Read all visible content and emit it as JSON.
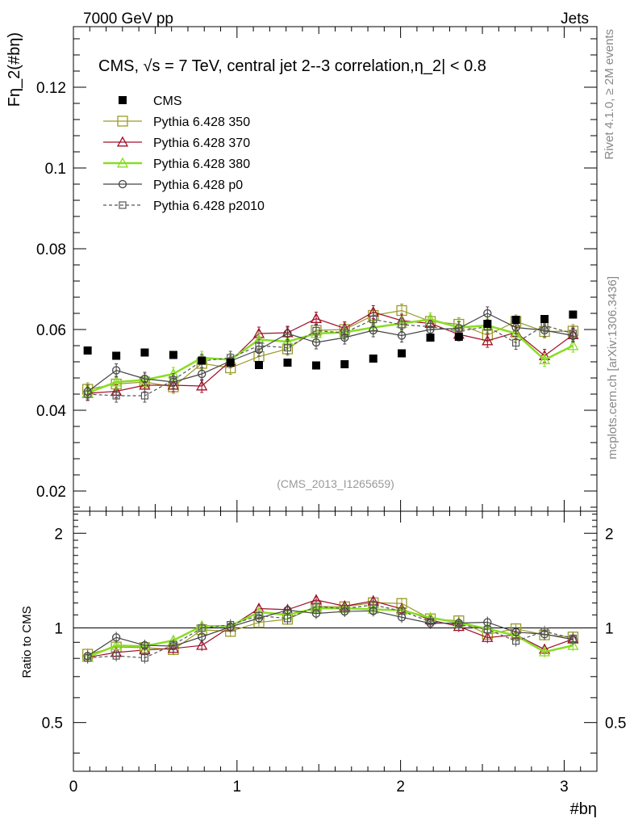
{
  "header": {
    "left": "7000 GeV pp",
    "right": "Jets"
  },
  "side_labels": {
    "rivet": "Rivet 4.1.0, ≥ 2M events",
    "mcplots": "mcplots.cern.ch [arXiv:1306.3436]"
  },
  "colors": {
    "cms": "#000000",
    "p350": "#9a9a2a",
    "p370": "#a0102a",
    "p380": "#88dd22",
    "p0": "#444444",
    "p2010": "#555555",
    "watermark": "#999999",
    "side": "#888888"
  },
  "chart_data": {
    "type": "line",
    "title": "CMS, √s = 7 TeV, central jet 2--3 correlation,η_2| < 0.8",
    "ylabel": "Fη_2(#bη)",
    "xlabel": "#bη",
    "ratio_ylabel": "Ratio to CMS",
    "watermark": "(CMS_2013_I1265659)",
    "xlim": [
      0,
      3.2
    ],
    "ylim": [
      0.015,
      0.135
    ],
    "ratio_ylim": [
      0.35,
      2.35
    ],
    "x_ticks": [
      "0",
      "1",
      "2",
      "3"
    ],
    "y_ticks": [
      "0.02",
      "0.04",
      "0.06",
      "0.08",
      "0.1",
      "0.12"
    ],
    "ratio_ticks": [
      "0.5",
      "1",
      "2"
    ],
    "x": [
      0.087,
      0.262,
      0.436,
      0.611,
      0.785,
      0.96,
      1.134,
      1.309,
      1.484,
      1.658,
      1.833,
      2.007,
      2.182,
      2.356,
      2.531,
      2.705,
      2.88,
      3.054
    ],
    "series": [
      {
        "name": "CMS",
        "key": "cms",
        "marker": "filled-square",
        "line": "none",
        "values": [
          0.0548,
          0.0535,
          0.0543,
          0.0537,
          0.0523,
          0.0518,
          0.0512,
          0.0518,
          0.0511,
          0.0514,
          0.0528,
          0.0541,
          0.058,
          0.0582,
          0.0614,
          0.0624,
          0.0626,
          0.0637
        ]
      },
      {
        "name": "Pythia 6.428 350",
        "key": "p350",
        "marker": "open-square",
        "line": "solid",
        "values": [
          0.0452,
          0.0465,
          0.047,
          0.0458,
          0.0516,
          0.0505,
          0.0533,
          0.0552,
          0.0598,
          0.06,
          0.0635,
          0.0647,
          0.062,
          0.0613,
          0.0586,
          0.062,
          0.0595,
          0.0596
        ]
      },
      {
        "name": "Pythia 6.428 370",
        "key": "p370",
        "marker": "open-triangle",
        "line": "solid",
        "values": [
          0.0442,
          0.0447,
          0.0462,
          0.0462,
          0.046,
          0.0522,
          0.059,
          0.0592,
          0.0627,
          0.0603,
          0.0643,
          0.0622,
          0.0615,
          0.0588,
          0.0572,
          0.0593,
          0.0535,
          0.0587
        ]
      },
      {
        "name": "Pythia 6.428 380",
        "key": "p380",
        "marker": "open-triangle",
        "line": "thick",
        "values": [
          0.0443,
          0.047,
          0.0475,
          0.049,
          0.053,
          0.0525,
          0.0575,
          0.057,
          0.059,
          0.0593,
          0.0605,
          0.0615,
          0.0625,
          0.0605,
          0.061,
          0.059,
          0.0525,
          0.056
        ]
      },
      {
        "name": "Pythia 6.428 p0",
        "key": "p0",
        "marker": "open-circle",
        "line": "solid",
        "values": [
          0.0446,
          0.0499,
          0.0478,
          0.047,
          0.049,
          0.0522,
          0.055,
          0.059,
          0.0568,
          0.058,
          0.0598,
          0.0585,
          0.06,
          0.0603,
          0.064,
          0.0605,
          0.0598,
          0.0585
        ]
      },
      {
        "name": "Pythia 6.428 p2010",
        "key": "p2010",
        "marker": "open-square-small",
        "line": "dashed",
        "values": [
          0.044,
          0.0436,
          0.0436,
          0.0475,
          0.0522,
          0.053,
          0.056,
          0.0555,
          0.0597,
          0.0592,
          0.0625,
          0.0612,
          0.0607,
          0.0596,
          0.0607,
          0.0567,
          0.061,
          0.059
        ]
      }
    ]
  }
}
